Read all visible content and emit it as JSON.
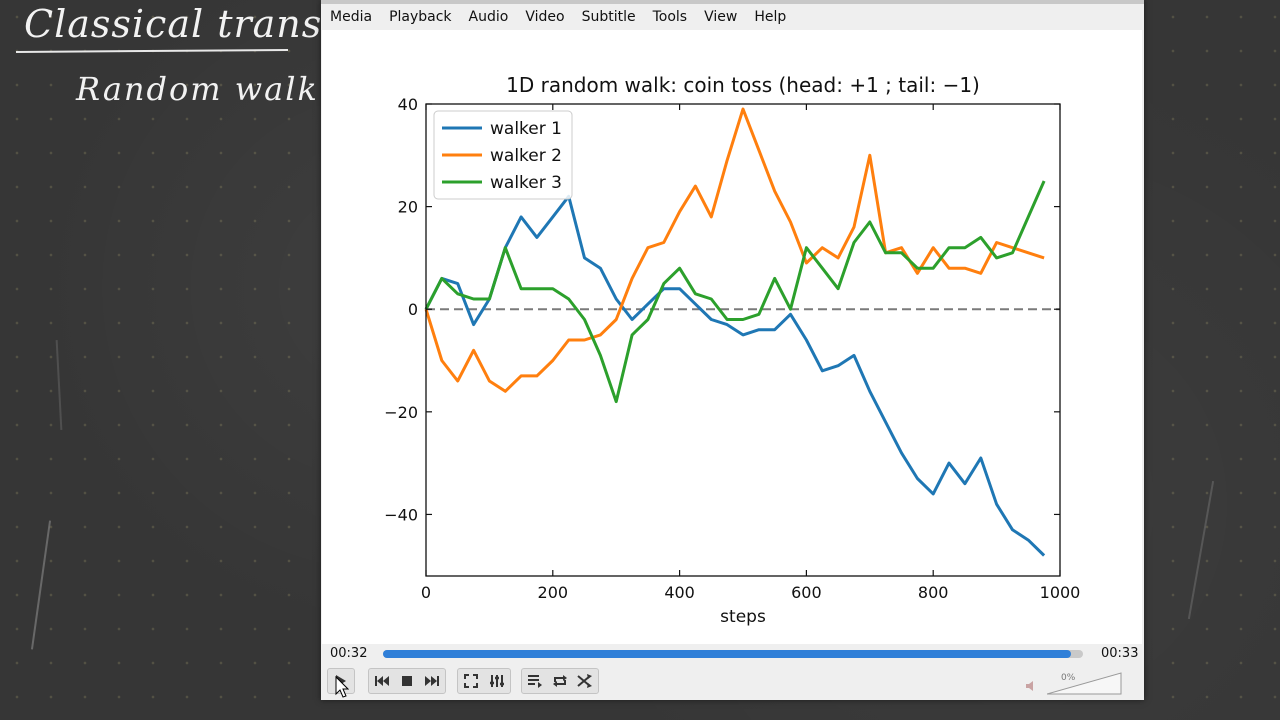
{
  "board": {
    "title": "Classical transport",
    "subtitle": "Random walk a"
  },
  "player": {
    "menu": [
      "Media",
      "Playback",
      "Audio",
      "Video",
      "Subtitle",
      "Tools",
      "View",
      "Help"
    ],
    "time_elapsed": "00:32",
    "time_total": "00:33",
    "progress_fraction": 0.983,
    "volume_label": "0%",
    "accent_color": "#2f7fd8"
  },
  "chart_data": {
    "type": "line",
    "title": "1D random walk: coin toss (head: +1 ; tail: −1)",
    "xlabel": "steps",
    "ylabel": "",
    "xlim": [
      0,
      1000
    ],
    "ylim": [
      -52,
      40
    ],
    "xticks": [
      0,
      200,
      400,
      600,
      800,
      1000
    ],
    "yticks": [
      40,
      20,
      0,
      -20,
      -40
    ],
    "legend_position": "upper-left",
    "reference_line": {
      "y": 0,
      "style": "dashed",
      "color": "#7a7a7a"
    },
    "x": [
      0,
      25,
      50,
      75,
      100,
      125,
      150,
      175,
      200,
      225,
      250,
      275,
      300,
      325,
      350,
      375,
      400,
      425,
      450,
      475,
      500,
      525,
      550,
      575,
      600,
      625,
      650,
      675,
      700,
      725,
      750,
      775,
      800,
      825,
      850,
      875,
      900,
      925,
      950,
      975
    ],
    "series": [
      {
        "name": "walker 1",
        "color": "#1f77b4",
        "values": [
          0,
          6,
          5,
          -3,
          2,
          12,
          18,
          14,
          18,
          22,
          10,
          8,
          2,
          -2,
          1,
          4,
          4,
          1,
          -2,
          -3,
          -5,
          -4,
          -4,
          -1,
          -6,
          -12,
          -11,
          -9,
          -16,
          -22,
          -28,
          -33,
          -36,
          -30,
          -34,
          -29,
          -38,
          -43,
          -45,
          -48
        ]
      },
      {
        "name": "walker 2",
        "color": "#ff7f0e",
        "values": [
          0,
          -10,
          -14,
          -8,
          -14,
          -16,
          -13,
          -13,
          -10,
          -6,
          -6,
          -5,
          -2,
          6,
          12,
          13,
          19,
          24,
          18,
          29,
          39,
          31,
          23,
          17,
          9,
          12,
          10,
          16,
          30,
          11,
          12,
          7,
          12,
          8,
          8,
          7,
          13,
          12,
          11,
          10
        ]
      },
      {
        "name": "walker 3",
        "color": "#2ca02c",
        "values": [
          0,
          6,
          3,
          2,
          2,
          12,
          4,
          4,
          4,
          2,
          -2,
          -9,
          -18,
          -5,
          -2,
          5,
          8,
          3,
          2,
          -2,
          -2,
          -1,
          6,
          0,
          12,
          8,
          4,
          13,
          17,
          11,
          11,
          8,
          8,
          12,
          12,
          14,
          10,
          11,
          18,
          25
        ]
      }
    ]
  }
}
